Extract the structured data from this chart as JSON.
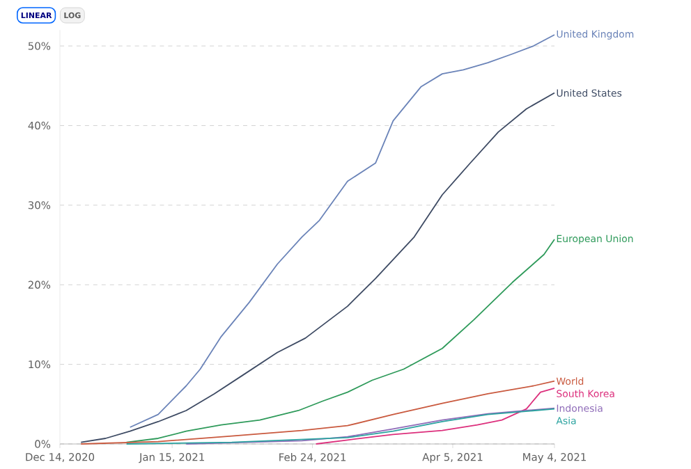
{
  "chart_data": {
    "type": "line",
    "annotations": [
      "LINEAR",
      "LOG"
    ],
    "xlim": [
      "2020-12-14",
      "2021-05-04"
    ],
    "xticks": [
      {
        "value": "2020-12-14",
        "label": "Dec 14, 2020"
      },
      {
        "value": "2021-01-15",
        "label": "Jan 15, 2021"
      },
      {
        "value": "2021-02-24",
        "label": "Feb 24, 2021"
      },
      {
        "value": "2021-04-05",
        "label": "Apr 5, 2021"
      },
      {
        "value": "2021-05-04",
        "label": "May 4, 2021"
      }
    ],
    "ylim": [
      0,
      52
    ],
    "yticks": [
      {
        "value": 0,
        "label": "0%"
      },
      {
        "value": 10,
        "label": "10%"
      },
      {
        "value": 20,
        "label": "20%"
      },
      {
        "value": 30,
        "label": "30%"
      },
      {
        "value": 40,
        "label": "40%"
      },
      {
        "value": 50,
        "label": "50%"
      }
    ],
    "grid": "y",
    "marker": "none",
    "line_style": "solid",
    "series": [
      {
        "name": "United Kingdom",
        "color": "#6a83b8",
        "x": [
          "2021-01-03",
          "2021-01-11",
          "2021-01-19",
          "2021-01-23",
          "2021-01-29",
          "2021-02-06",
          "2021-02-14",
          "2021-02-21",
          "2021-02-26",
          "2021-03-06",
          "2021-03-14",
          "2021-03-19",
          "2021-03-27",
          "2021-04-02",
          "2021-04-08",
          "2021-04-15",
          "2021-04-22",
          "2021-04-28",
          "2021-05-04"
        ],
        "values": [
          2.1,
          3.7,
          7.3,
          9.4,
          13.5,
          17.8,
          22.6,
          26,
          28.1,
          33,
          35.3,
          40.6,
          44.9,
          46.5,
          47,
          47.9,
          49,
          50,
          51.4
        ]
      },
      {
        "name": "United States",
        "color": "#3d4a63",
        "x": [
          "2020-12-20",
          "2020-12-27",
          "2021-01-03",
          "2021-01-11",
          "2021-01-19",
          "2021-01-27",
          "2021-02-04",
          "2021-02-14",
          "2021-02-22",
          "2021-03-06",
          "2021-03-14",
          "2021-03-25",
          "2021-04-02",
          "2021-04-10",
          "2021-04-18",
          "2021-04-26",
          "2021-05-04"
        ],
        "values": [
          0.2,
          0.7,
          1.6,
          2.8,
          4.2,
          6.3,
          8.6,
          11.5,
          13.3,
          17.3,
          20.8,
          26,
          31.3,
          35.3,
          39.2,
          42.1,
          44.1
        ]
      },
      {
        "name": "European Union",
        "color": "#2e9a5a",
        "x": [
          "2021-01-02",
          "2021-01-11",
          "2021-01-19",
          "2021-01-29",
          "2021-02-09",
          "2021-02-20",
          "2021-02-27",
          "2021-03-06",
          "2021-03-13",
          "2021-03-22",
          "2021-04-02",
          "2021-04-11",
          "2021-04-22",
          "2021-05-01",
          "2021-05-04"
        ],
        "values": [
          0.2,
          0.7,
          1.6,
          2.4,
          3,
          4.2,
          5.4,
          6.5,
          8,
          9.4,
          12,
          15.6,
          20.3,
          23.8,
          25.7
        ]
      },
      {
        "name": "World",
        "color": "#c9593e",
        "x": [
          "2020-12-20",
          "2021-01-11",
          "2021-02-01",
          "2021-02-21",
          "2021-03-06",
          "2021-03-19",
          "2021-04-02",
          "2021-04-15",
          "2021-04-28",
          "2021-05-04"
        ],
        "values": [
          0,
          0.3,
          1,
          1.7,
          2.3,
          3.7,
          5.1,
          6.3,
          7.3,
          7.9
        ]
      },
      {
        "name": "South Korea",
        "color": "#dc2f7c",
        "x": [
          "2021-02-25",
          "2021-03-06",
          "2021-03-19",
          "2021-04-02",
          "2021-04-12",
          "2021-04-19",
          "2021-04-26",
          "2021-04-30",
          "2021-05-04"
        ],
        "values": [
          0,
          0.5,
          1.2,
          1.7,
          2.4,
          3,
          4.4,
          6.5,
          7
        ]
      },
      {
        "name": "Indonesia",
        "color": "#8e6bb8",
        "x": [
          "2021-01-19",
          "2021-02-21",
          "2021-03-06",
          "2021-03-19",
          "2021-04-02",
          "2021-04-15",
          "2021-05-04"
        ],
        "values": [
          0,
          0.4,
          0.9,
          1.9,
          3,
          3.8,
          4.5
        ]
      },
      {
        "name": "Asia",
        "color": "#2ba3a0",
        "x": [
          "2021-01-02",
          "2021-02-01",
          "2021-03-06",
          "2021-03-19",
          "2021-04-02",
          "2021-04-15",
          "2021-05-04"
        ],
        "values": [
          0,
          0.2,
          0.8,
          1.6,
          2.8,
          3.7,
          4.4
        ]
      }
    ]
  }
}
